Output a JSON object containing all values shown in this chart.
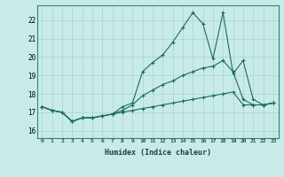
{
  "xlabel": "Humidex (Indice chaleur)",
  "background_color": "#c8ebe8",
  "grid_color": "#a8d4d0",
  "line_color": "#1a6b60",
  "x_values": [
    0,
    1,
    2,
    3,
    4,
    5,
    6,
    7,
    8,
    9,
    10,
    11,
    12,
    13,
    14,
    15,
    16,
    17,
    18,
    19,
    20,
    21,
    22,
    23
  ],
  "line1": [
    17.3,
    17.1,
    17.0,
    16.5,
    16.7,
    16.7,
    16.8,
    16.9,
    17.3,
    17.5,
    19.2,
    19.7,
    20.1,
    20.8,
    21.6,
    22.4,
    21.8,
    19.9,
    22.4,
    19.1,
    19.8,
    17.7,
    17.4,
    17.5
  ],
  "line2": [
    17.3,
    17.1,
    17.0,
    16.5,
    16.7,
    16.7,
    16.8,
    16.9,
    17.1,
    17.4,
    17.9,
    18.2,
    18.5,
    18.7,
    19.0,
    19.2,
    19.4,
    19.5,
    19.8,
    19.2,
    17.7,
    17.4,
    17.4,
    17.5
  ],
  "line3": [
    17.3,
    17.1,
    17.0,
    16.5,
    16.7,
    16.7,
    16.8,
    16.9,
    17.0,
    17.1,
    17.2,
    17.3,
    17.4,
    17.5,
    17.6,
    17.7,
    17.8,
    17.9,
    18.0,
    18.1,
    17.4,
    17.4,
    17.4,
    17.5
  ],
  "ylim": [
    15.6,
    22.8
  ],
  "yticks": [
    16,
    17,
    18,
    19,
    20,
    21,
    22
  ],
  "xlim": [
    -0.5,
    23.5
  ],
  "xticks": [
    0,
    1,
    2,
    3,
    4,
    5,
    6,
    7,
    8,
    9,
    10,
    11,
    12,
    13,
    14,
    15,
    16,
    17,
    18,
    19,
    20,
    21,
    22,
    23
  ]
}
